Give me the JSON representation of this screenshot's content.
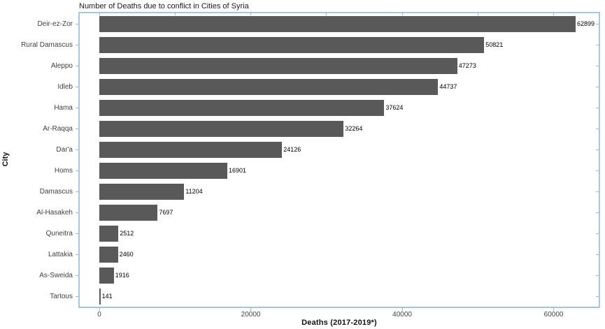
{
  "chart_data": {
    "type": "bar",
    "orientation": "horizontal",
    "title": "Number of Deaths due to conflict in Cities of Syria",
    "xlabel": "Deaths (2017-2019*)",
    "ylabel": "City",
    "categories": [
      "Deir-ez-Zor",
      "Rural Damascus",
      "Aleppo",
      "Idleb",
      "Hama",
      "Ar-Raqqa",
      "Dar'a",
      "Homs",
      "Damascus",
      "Al-Hasakeh",
      "Quneitra",
      "Lattakia",
      "As-Sweida",
      "Tartous"
    ],
    "values": [
      62899,
      50821,
      47273,
      44737,
      37624,
      32264,
      24126,
      16901,
      11204,
      7697,
      2512,
      2460,
      1916,
      141
    ],
    "value_labels": [
      "62899",
      "50821",
      "47273",
      "44737",
      "37624",
      "32264",
      "24126",
      "16901",
      "11204",
      "7697",
      "2512",
      "2460",
      "1916",
      "141"
    ],
    "x_ticks": [
      0,
      20000,
      40000,
      60000
    ],
    "x_tick_labels": [
      "0",
      "20000",
      "40000",
      "60000"
    ],
    "x_minor_ticks": [
      0,
      10000,
      20000,
      30000,
      40000,
      50000,
      60000
    ],
    "xlim": [
      -2590,
      65950
    ],
    "grid": false,
    "colors": {
      "bar": "#595959",
      "panel_border": "#a9c6df",
      "tick": "#9ab9d4",
      "axis_text": "#444444",
      "title_text": "#1a1a1a",
      "value_label_text": "#000000"
    }
  }
}
